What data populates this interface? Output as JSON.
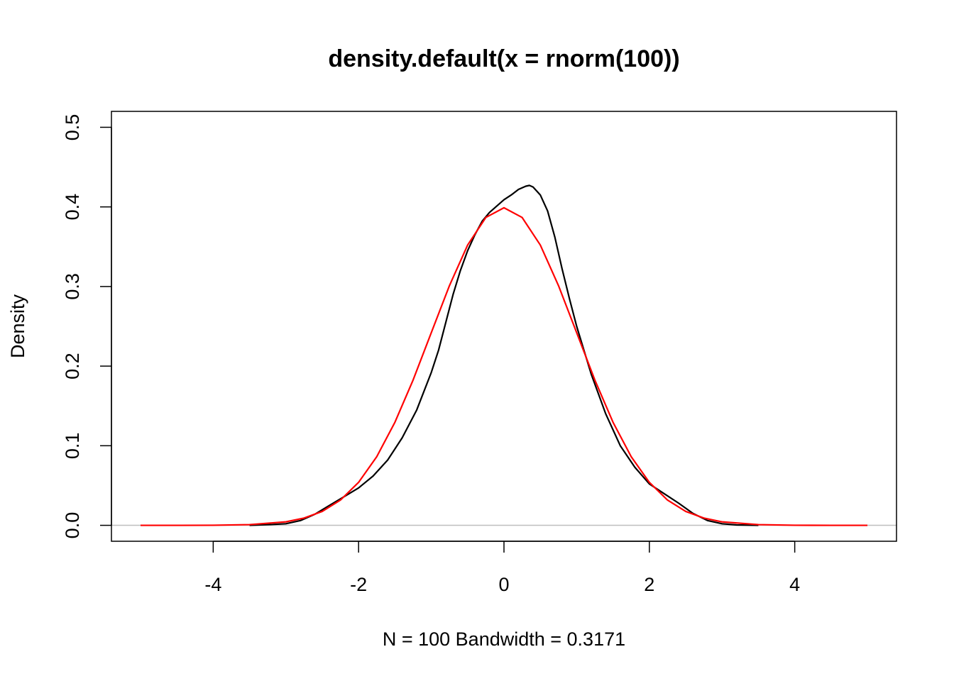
{
  "chart_data": {
    "type": "line",
    "title": "density.default(x = rnorm(100))",
    "xlabel": "N = 100   Bandwidth = 0.3171",
    "ylabel": "Density",
    "xlim": [
      -5.4,
      5.4
    ],
    "ylim": [
      -0.02,
      0.52
    ],
    "x_ticks": [
      -4,
      -2,
      0,
      2,
      4
    ],
    "x_tick_labels": [
      "-4",
      "-2",
      "0",
      "2",
      "4"
    ],
    "y_ticks": [
      0.0,
      0.1,
      0.2,
      0.3,
      0.4,
      0.5
    ],
    "y_tick_labels": [
      "0.0",
      "0.1",
      "0.2",
      "0.3",
      "0.4",
      "0.5"
    ],
    "grid": false,
    "baseline": {
      "y": 0,
      "color": "#bebebe"
    },
    "series": [
      {
        "color": "#000000",
        "x": [
          -3.5,
          -3.2,
          -3.0,
          -2.8,
          -2.6,
          -2.4,
          -2.2,
          -2.0,
          -1.8,
          -1.6,
          -1.4,
          -1.2,
          -1.0,
          -0.9,
          -0.8,
          -0.7,
          -0.6,
          -0.5,
          -0.4,
          -0.3,
          -0.2,
          -0.1,
          0.0,
          0.1,
          0.2,
          0.3,
          0.35,
          0.4,
          0.5,
          0.6,
          0.7,
          0.8,
          0.9,
          1.0,
          1.1,
          1.2,
          1.3,
          1.4,
          1.5,
          1.6,
          1.8,
          2.0,
          2.2,
          2.4,
          2.6,
          2.8,
          3.0,
          3.2,
          3.5
        ],
        "y": [
          0.0,
          0.001,
          0.002,
          0.006,
          0.014,
          0.025,
          0.036,
          0.047,
          0.062,
          0.082,
          0.11,
          0.145,
          0.192,
          0.22,
          0.255,
          0.29,
          0.32,
          0.345,
          0.365,
          0.382,
          0.393,
          0.401,
          0.409,
          0.415,
          0.422,
          0.426,
          0.427,
          0.425,
          0.415,
          0.395,
          0.362,
          0.322,
          0.285,
          0.25,
          0.22,
          0.19,
          0.165,
          0.14,
          0.12,
          0.1,
          0.073,
          0.052,
          0.04,
          0.028,
          0.015,
          0.006,
          0.002,
          0.0005,
          0.0
        ]
      },
      {
        "color": "#ff0000",
        "x": [
          -5.0,
          -4.5,
          -4.0,
          -3.5,
          -3.0,
          -2.75,
          -2.5,
          -2.25,
          -2.0,
          -1.75,
          -1.5,
          -1.25,
          -1.0,
          -0.75,
          -0.5,
          -0.25,
          0.0,
          0.25,
          0.5,
          0.75,
          1.0,
          1.25,
          1.5,
          1.75,
          2.0,
          2.25,
          2.5,
          2.75,
          3.0,
          3.5,
          4.0,
          4.5,
          5.0
        ],
        "y": [
          0.0,
          0.0,
          0.0001,
          0.0009,
          0.0044,
          0.0091,
          0.0175,
          0.0317,
          0.054,
          0.0863,
          0.1295,
          0.1826,
          0.242,
          0.3011,
          0.3521,
          0.3867,
          0.3989,
          0.3867,
          0.3521,
          0.3011,
          0.242,
          0.1826,
          0.1295,
          0.0863,
          0.054,
          0.0317,
          0.0175,
          0.0091,
          0.0044,
          0.0009,
          0.0001,
          0.0,
          0.0
        ]
      }
    ]
  }
}
